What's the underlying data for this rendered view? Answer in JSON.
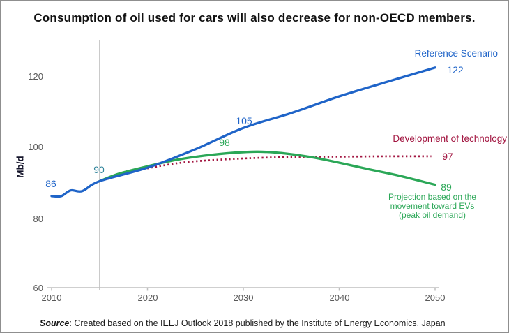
{
  "title": "Consumption of oil used for cars will also decrease for non-OECD members.",
  "source": {
    "prefix": "Source",
    "text": ": Created based on the IEEJ Outlook 2018 published by the Institute of Energy Economics, Japan"
  },
  "colors": {
    "reference_blue": "#1f64c8",
    "ev_green": "#2ba757",
    "technology_crimson": "#a21540",
    "shared_label_teal": "#31859c",
    "axis_text_gray": "#595959",
    "axis_line_gray": "#bfbfbf",
    "event_line_gray": "#a6a6a6"
  },
  "chart_data": {
    "type": "line",
    "title": "Consumption of oil used for cars will also decrease for non-OECD members.",
    "xlabel": "",
    "ylabel": "Mb/d",
    "xlim": [
      2010,
      2050
    ],
    "ylim": [
      60,
      130
    ],
    "x_ticks": [
      "2010",
      "2020",
      "2030",
      "2040",
      "2050"
    ],
    "y_ticks": [
      "120",
      "100",
      "80",
      "60"
    ],
    "grid": false,
    "legend_position": "inline-right",
    "event_line_year": 2015,
    "series": [
      {
        "name": "Reference Scenario",
        "color": "#1f64c8",
        "style": "solid",
        "points": [
          [
            2010,
            85.8
          ],
          [
            2011,
            85.8
          ],
          [
            2012,
            87.4
          ],
          [
            2013.2,
            87.2
          ],
          [
            2015,
            90
          ],
          [
            2020,
            93.8
          ],
          [
            2025,
            99.0
          ],
          [
            2030,
            105
          ],
          [
            2035,
            109.2
          ],
          [
            2040,
            113.9
          ],
          [
            2045,
            118.0
          ],
          [
            2050,
            122
          ]
        ]
      },
      {
        "name": "Development of technology",
        "color": "#a21540",
        "style": "dotted",
        "points": [
          [
            2015,
            90
          ],
          [
            2017.5,
            92.0
          ],
          [
            2020,
            93.6
          ],
          [
            2022.5,
            94.8
          ],
          [
            2025,
            95.6
          ],
          [
            2030,
            96.4
          ],
          [
            2035,
            96.8
          ],
          [
            2040,
            96.9
          ],
          [
            2045,
            97.0
          ],
          [
            2049.6,
            97
          ]
        ]
      },
      {
        "name": "Projection based on the movement toward EVs (peak oil demand)",
        "color": "#2ba757",
        "style": "solid",
        "label_lines": [
          "Projection based on the",
          "movement toward EVs",
          "(peak oil demand)"
        ],
        "points": [
          [
            2015,
            90
          ],
          [
            2017,
            92.1
          ],
          [
            2020,
            94.2
          ],
          [
            2023,
            96.0
          ],
          [
            2026,
            97.2
          ],
          [
            2029,
            98.0
          ],
          [
            2031.5,
            98.3
          ],
          [
            2034,
            97.9
          ],
          [
            2037,
            96.8
          ],
          [
            2040,
            95.2
          ],
          [
            2043,
            93.4
          ],
          [
            2046,
            91.7
          ],
          [
            2050,
            89
          ]
        ]
      }
    ],
    "annotations": [
      {
        "text": "86",
        "series": "Reference Scenario",
        "year": 2010
      },
      {
        "text": "90",
        "series": "all (2015 start)",
        "year": 2015
      },
      {
        "text": "105",
        "series": "Reference Scenario",
        "year": 2030
      },
      {
        "text": "98",
        "series": "EV projection",
        "year": 2029
      },
      {
        "text": "122",
        "series": "Reference Scenario",
        "year": 2050
      },
      {
        "text": "97",
        "series": "Development of technology",
        "year": 2050
      },
      {
        "text": "89",
        "series": "EV projection",
        "year": 2050
      }
    ]
  }
}
